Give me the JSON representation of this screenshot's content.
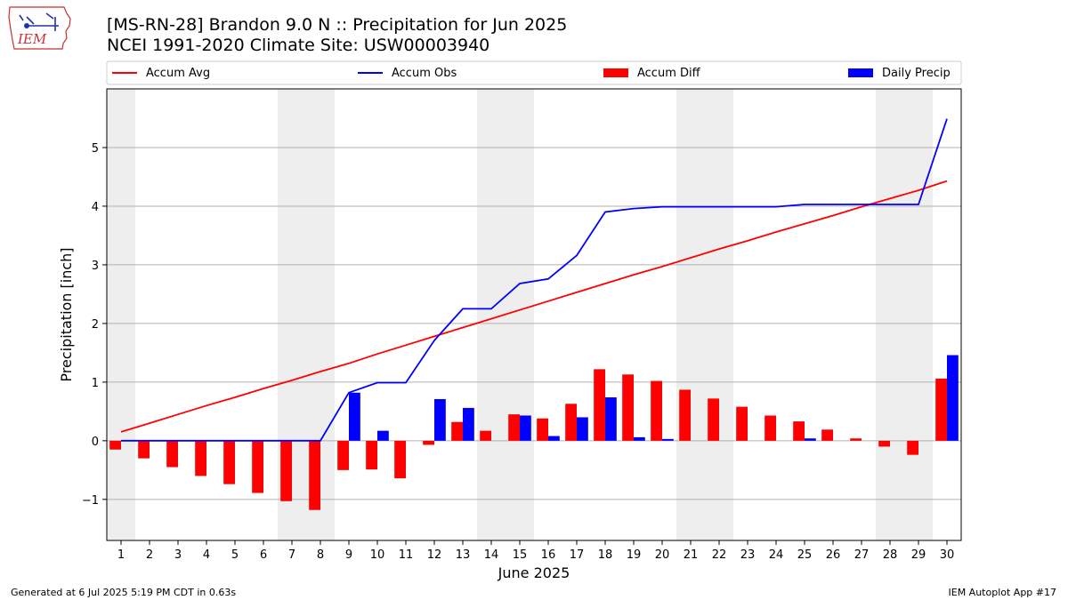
{
  "header": {
    "title_line1": "[MS-RN-28] Brandon 9.0 N :: Precipitation for Jun 2025",
    "title_line2": "NCEI 1991-2020 Climate Site: USW00003940",
    "logo_text": "IEM"
  },
  "footer": {
    "left": "Generated at 6 Jul 2025 5:19 PM CDT in 0.63s",
    "right": "IEM Autoplot App #17"
  },
  "colors": {
    "avg": "#ff0000",
    "obs": "#0000ff",
    "diff": "#ff0000",
    "daily": "#0000ff",
    "weekend_shade": "#eeeeee",
    "grid": "#b0b0b0"
  },
  "chart_data": {
    "type": "bar",
    "xlabel": "June 2025",
    "ylabel": "Precipitation [inch]",
    "x": [
      1,
      2,
      3,
      4,
      5,
      6,
      7,
      8,
      9,
      10,
      11,
      12,
      13,
      14,
      15,
      16,
      17,
      18,
      19,
      20,
      21,
      22,
      23,
      24,
      25,
      26,
      27,
      28,
      29,
      30
    ],
    "xlim": [
      0.5,
      30.5
    ],
    "ylim": [
      -1.7,
      6.0
    ],
    "yticks": [
      -1,
      0,
      1,
      2,
      3,
      4,
      5
    ],
    "grid": "horizontal",
    "legend_position": "top",
    "weekend_shaded_days": [
      1,
      7,
      8,
      14,
      15,
      21,
      22,
      28,
      29
    ],
    "series": [
      {
        "name": "Accum Avg",
        "kind": "line",
        "values": [
          0.15,
          0.3,
          0.45,
          0.6,
          0.74,
          0.89,
          1.03,
          1.18,
          1.32,
          1.48,
          1.63,
          1.78,
          1.93,
          2.08,
          2.23,
          2.38,
          2.53,
          2.68,
          2.83,
          2.97,
          3.12,
          3.27,
          3.41,
          3.56,
          3.7,
          3.84,
          3.99,
          4.13,
          4.27,
          4.43
        ]
      },
      {
        "name": "Accum Obs",
        "kind": "line",
        "values": [
          0,
          0,
          0,
          0,
          0,
          0,
          0,
          0,
          0.82,
          0.99,
          0.99,
          1.71,
          2.25,
          2.25,
          2.68,
          2.76,
          3.16,
          3.9,
          3.96,
          3.99,
          3.99,
          3.99,
          3.99,
          3.99,
          4.03,
          4.03,
          4.03,
          4.03,
          4.03,
          5.49
        ]
      },
      {
        "name": "Accum Diff",
        "kind": "bar",
        "values": [
          -0.15,
          -0.3,
          -0.45,
          -0.6,
          -0.74,
          -0.89,
          -1.03,
          -1.18,
          -0.5,
          -0.49,
          -0.64,
          -0.07,
          0.32,
          0.17,
          0.45,
          0.38,
          0.63,
          1.22,
          1.13,
          1.02,
          0.87,
          0.72,
          0.58,
          0.43,
          0.33,
          0.19,
          0.04,
          -0.1,
          -0.24,
          1.06
        ]
      },
      {
        "name": "Daily Precip",
        "kind": "bar",
        "values": [
          0,
          0,
          0,
          0,
          0,
          0,
          0,
          0,
          0.82,
          0.17,
          0,
          0.71,
          0.56,
          0,
          0.43,
          0.08,
          0.4,
          0.74,
          0.06,
          0.03,
          0,
          0,
          0,
          0,
          0.04,
          0,
          0,
          0,
          0,
          1.46
        ]
      }
    ]
  }
}
